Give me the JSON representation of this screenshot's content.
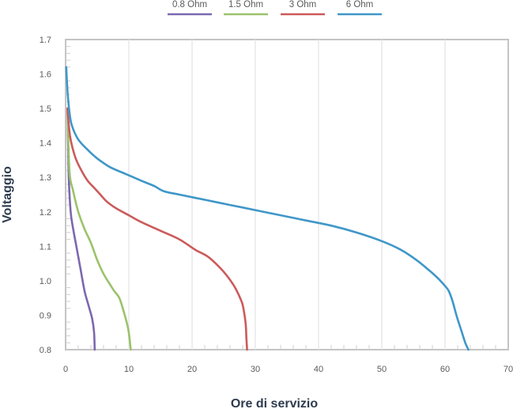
{
  "chart_data": {
    "type": "line",
    "title": "",
    "xlabel": "Ore di servizio",
    "ylabel": "Voltaggio",
    "xlim": [
      0,
      70
    ],
    "ylim": [
      0.8,
      1.7
    ],
    "x_ticks": [
      "0",
      "10",
      "20",
      "30",
      "40",
      "50",
      "60",
      "70"
    ],
    "y_ticks": [
      "0.8",
      "0.9",
      "1.0",
      "1.1",
      "1.2",
      "1.3",
      "1.4",
      "1.5",
      "1.6",
      "1.7"
    ],
    "grid": "vertical",
    "legend_position": "top",
    "series": [
      {
        "name": "0.8 Ohm",
        "color": "#7b68b0",
        "x": [
          0.3,
          0.5,
          0.8,
          1.2,
          1.7,
          2.4,
          3.0,
          3.6,
          4.2,
          4.5,
          4.6
        ],
        "y": [
          1.5,
          1.3,
          1.2,
          1.15,
          1.1,
          1.03,
          0.97,
          0.93,
          0.89,
          0.85,
          0.8
        ]
      },
      {
        "name": "1.5 Ohm",
        "color": "#9bc26b",
        "x": [
          0.3,
          0.6,
          1.2,
          2.0,
          3.0,
          4.0,
          5.0,
          6.0,
          7.0,
          7.7,
          8.5,
          9.2,
          9.9,
          10.3
        ],
        "y": [
          1.5,
          1.32,
          1.26,
          1.2,
          1.15,
          1.11,
          1.06,
          1.02,
          0.99,
          0.97,
          0.95,
          0.91,
          0.86,
          0.8
        ]
      },
      {
        "name": "3 Ohm",
        "color": "#cc5a5a",
        "x": [
          0.3,
          0.7,
          1.5,
          2.5,
          3.5,
          4.5,
          5.5,
          6.5,
          8.0,
          10.0,
          12.0,
          15.0,
          18.0,
          20.5,
          22.5,
          24.3,
          25.7,
          26.8,
          27.6,
          28.0,
          28.3,
          28.5,
          28.6,
          28.7
        ],
        "y": [
          1.5,
          1.42,
          1.36,
          1.32,
          1.29,
          1.27,
          1.25,
          1.23,
          1.21,
          1.19,
          1.17,
          1.145,
          1.12,
          1.09,
          1.07,
          1.04,
          1.01,
          0.98,
          0.95,
          0.93,
          0.9,
          0.87,
          0.83,
          0.8
        ]
      },
      {
        "name": "6 Ohm",
        "color": "#3f97c8",
        "x": [
          0.1,
          0.3,
          0.6,
          1.0,
          2.0,
          3.5,
          5.0,
          7.0,
          9.5,
          12.0,
          14.0,
          15.5,
          18.0,
          22.0,
          26.0,
          30.0,
          34.0,
          38.0,
          42.0,
          46.0,
          50.0,
          53.0,
          55.5,
          57.5,
          59.0,
          60.0,
          60.6,
          61.2,
          61.8,
          62.5,
          63.2,
          63.7
        ],
        "y": [
          1.62,
          1.55,
          1.49,
          1.45,
          1.41,
          1.38,
          1.355,
          1.33,
          1.31,
          1.29,
          1.275,
          1.26,
          1.25,
          1.235,
          1.22,
          1.205,
          1.19,
          1.175,
          1.16,
          1.14,
          1.115,
          1.09,
          1.06,
          1.03,
          1.005,
          0.985,
          0.97,
          0.94,
          0.9,
          0.86,
          0.82,
          0.8
        ]
      }
    ]
  }
}
